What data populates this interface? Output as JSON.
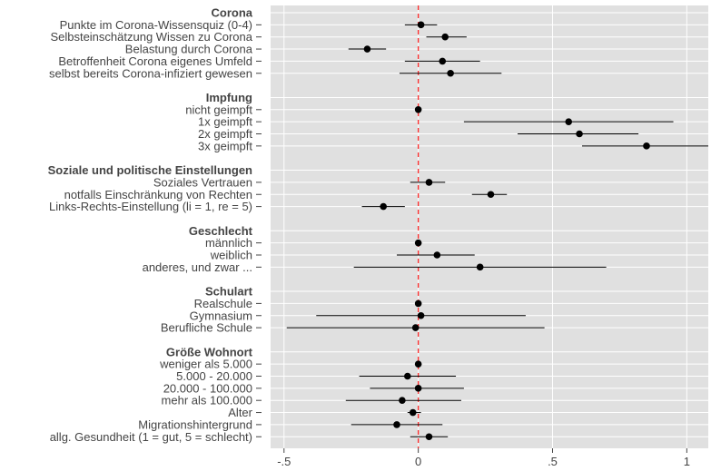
{
  "chart_data": {
    "type": "scatter",
    "subtype": "coefficient-plot",
    "title": "",
    "xlabel": "",
    "ylabel": "",
    "xlim": [
      -0.55,
      1.08
    ],
    "x_ticks": [
      -0.5,
      0,
      0.5,
      1
    ],
    "x_tick_labels": [
      "-.5",
      "0",
      ".5",
      "1"
    ],
    "reference_line": {
      "x": 0,
      "style": "dashed",
      "color": "#ff2a2a"
    },
    "grid": true,
    "background": "#e0e0e0",
    "point_color": "#000000",
    "groups": [
      {
        "header": "Corona",
        "items": [
          {
            "label": "Punkte im Corona-Wissensquiz (0-4)",
            "estimate": 0.01,
            "ci_low": -0.05,
            "ci_high": 0.07
          },
          {
            "label": "Selbsteinschätzung Wissen zu Corona",
            "estimate": 0.1,
            "ci_low": 0.03,
            "ci_high": 0.18
          },
          {
            "label": "Belastung durch Corona",
            "estimate": -0.19,
            "ci_low": -0.26,
            "ci_high": -0.12
          },
          {
            "label": "Betroffenheit Corona eigenes Umfeld",
            "estimate": 0.09,
            "ci_low": -0.05,
            "ci_high": 0.23
          },
          {
            "label": "selbst bereits Corona-infiziert gewesen",
            "estimate": 0.12,
            "ci_low": -0.07,
            "ci_high": 0.31
          }
        ]
      },
      {
        "header": "Impfung",
        "items": [
          {
            "label": "nicht geimpft",
            "estimate": 0.0,
            "ci_low": 0.0,
            "ci_high": 0.0
          },
          {
            "label": "1x geimpft",
            "estimate": 0.56,
            "ci_low": 0.17,
            "ci_high": 0.95
          },
          {
            "label": "2x geimpft",
            "estimate": 0.6,
            "ci_low": 0.37,
            "ci_high": 0.82
          },
          {
            "label": "3x geimpft",
            "estimate": 0.85,
            "ci_low": 0.61,
            "ci_high": 1.08
          }
        ]
      },
      {
        "header": "Soziale und politische Einstellungen",
        "items": [
          {
            "label": "Soziales Vertrauen",
            "estimate": 0.04,
            "ci_low": -0.03,
            "ci_high": 0.1
          },
          {
            "label": "notfalls Einschränkung von Rechten",
            "estimate": 0.27,
            "ci_low": 0.2,
            "ci_high": 0.33
          },
          {
            "label": "Links-Rechts-Einstellung (li = 1, re = 5)",
            "estimate": -0.13,
            "ci_low": -0.21,
            "ci_high": -0.05
          }
        ]
      },
      {
        "header": "Geschlecht",
        "items": [
          {
            "label": "männlich",
            "estimate": 0.0,
            "ci_low": 0.0,
            "ci_high": 0.0
          },
          {
            "label": "weiblich",
            "estimate": 0.07,
            "ci_low": -0.08,
            "ci_high": 0.21
          },
          {
            "label": "anderes, und zwar ...",
            "estimate": 0.23,
            "ci_low": -0.24,
            "ci_high": 0.7
          }
        ]
      },
      {
        "header": "Schulart",
        "items": [
          {
            "label": "Realschule",
            "estimate": 0.0,
            "ci_low": 0.0,
            "ci_high": 0.0
          },
          {
            "label": "Gymnasium",
            "estimate": 0.01,
            "ci_low": -0.38,
            "ci_high": 0.4
          },
          {
            "label": "Berufliche Schule",
            "estimate": -0.01,
            "ci_low": -0.49,
            "ci_high": 0.47
          }
        ]
      },
      {
        "header": "Größe Wohnort",
        "items": [
          {
            "label": "weniger als 5.000",
            "estimate": 0.0,
            "ci_low": 0.0,
            "ci_high": 0.0
          },
          {
            "label": "5.000 - 20.000",
            "estimate": -0.04,
            "ci_low": -0.22,
            "ci_high": 0.14
          },
          {
            "label": "20.000 - 100.000",
            "estimate": 0.0,
            "ci_low": -0.18,
            "ci_high": 0.17
          },
          {
            "label": "mehr als 100.000",
            "estimate": -0.06,
            "ci_low": -0.27,
            "ci_high": 0.16
          },
          {
            "label": "Alter",
            "estimate": -0.02,
            "ci_low": -0.04,
            "ci_high": 0.01
          },
          {
            "label": "Migrationshintergrund",
            "estimate": -0.08,
            "ci_low": -0.25,
            "ci_high": 0.09
          },
          {
            "label": "allg. Gesundheit (1 = gut, 5 = schlecht)",
            "estimate": 0.04,
            "ci_low": -0.03,
            "ci_high": 0.11
          }
        ]
      }
    ]
  }
}
